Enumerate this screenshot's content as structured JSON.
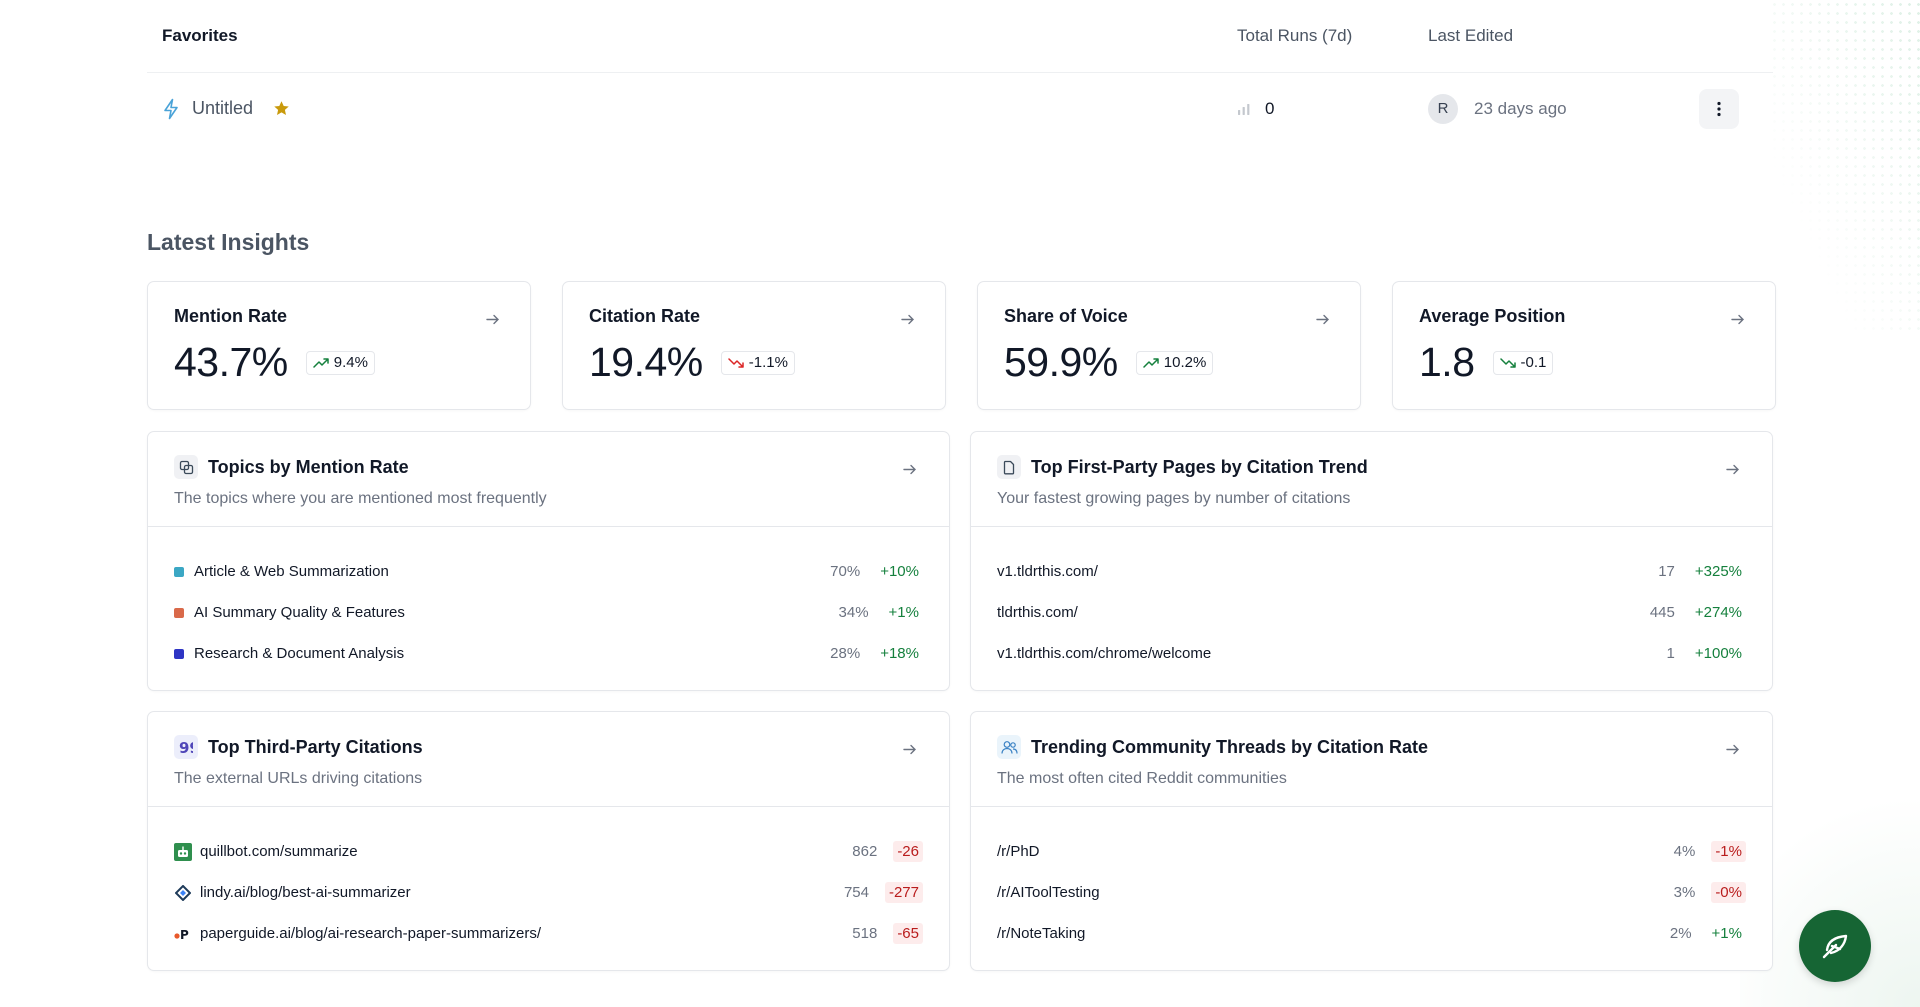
{
  "favorites": {
    "title": "Favorites",
    "col_runs": "Total Runs (7d)",
    "col_edited": "Last Edited",
    "rows": [
      {
        "name": "Untitled",
        "runs": "0",
        "avatar": "R",
        "edited": "23 days ago"
      }
    ]
  },
  "insights": {
    "title": "Latest Insights",
    "stats": [
      {
        "label": "Mention Rate",
        "value": "43.7%",
        "change": "9.4%",
        "trend": "up"
      },
      {
        "label": "Citation Rate",
        "value": "19.4%",
        "change": "-1.1%",
        "trend": "down"
      },
      {
        "label": "Share of Voice",
        "value": "59.9%",
        "change": "10.2%",
        "trend": "up"
      },
      {
        "label": "Average Position",
        "value": "1.8",
        "change": "-0.1",
        "trend": "down-neutral"
      }
    ]
  },
  "panels": {
    "topics": {
      "title": "Topics by Mention Rate",
      "subtitle": "The topics where you are mentioned most frequently",
      "rows": [
        {
          "label": "Article & Web Summarization",
          "color": "#3ba7c4",
          "value": "70%",
          "change": "+10%"
        },
        {
          "label": "AI Summary Quality & Features",
          "color": "#d9694a",
          "value": "34%",
          "change": "+1%"
        },
        {
          "label": "Research & Document Analysis",
          "color": "#2e35c4",
          "value": "28%",
          "change": "+18%"
        }
      ]
    },
    "pages": {
      "title": "Top First-Party Pages by Citation Trend",
      "subtitle": "Your fastest growing pages by number of citations",
      "rows": [
        {
          "label": "v1.tldrthis.com/",
          "value": "17",
          "change": "+325%"
        },
        {
          "label": "tldrthis.com/",
          "value": "445",
          "change": "+274%"
        },
        {
          "label": "v1.tldrthis.com/chrome/welcome",
          "value": "1",
          "change": "+100%"
        }
      ]
    },
    "third_party": {
      "title": "Top Third-Party Citations",
      "subtitle": "The external URLs driving citations",
      "rows": [
        {
          "label": "quillbot.com/summarize",
          "icon": "quillbot-icon",
          "value": "862",
          "change": "-26"
        },
        {
          "label": "lindy.ai/blog/best-ai-summarizer",
          "icon": "lindy-icon",
          "value": "754",
          "change": "-277"
        },
        {
          "label": "paperguide.ai/blog/ai-research-paper-summarizers/",
          "icon": "paperguide-icon",
          "value": "518",
          "change": "-65"
        }
      ]
    },
    "threads": {
      "title": "Trending Community Threads by Citation Rate",
      "subtitle": "The most often cited Reddit communities",
      "rows": [
        {
          "label": "/r/PhD",
          "value": "4%",
          "change": "-1%"
        },
        {
          "label": "/r/AIToolTesting",
          "value": "3%",
          "change": "-0%"
        },
        {
          "label": "/r/NoteTaking",
          "value": "2%",
          "change": "+1%"
        }
      ]
    }
  },
  "colors": {
    "positive": "#15803d",
    "negative": "#b91c1c",
    "fab": "#166534",
    "star": "#c99a0c"
  }
}
